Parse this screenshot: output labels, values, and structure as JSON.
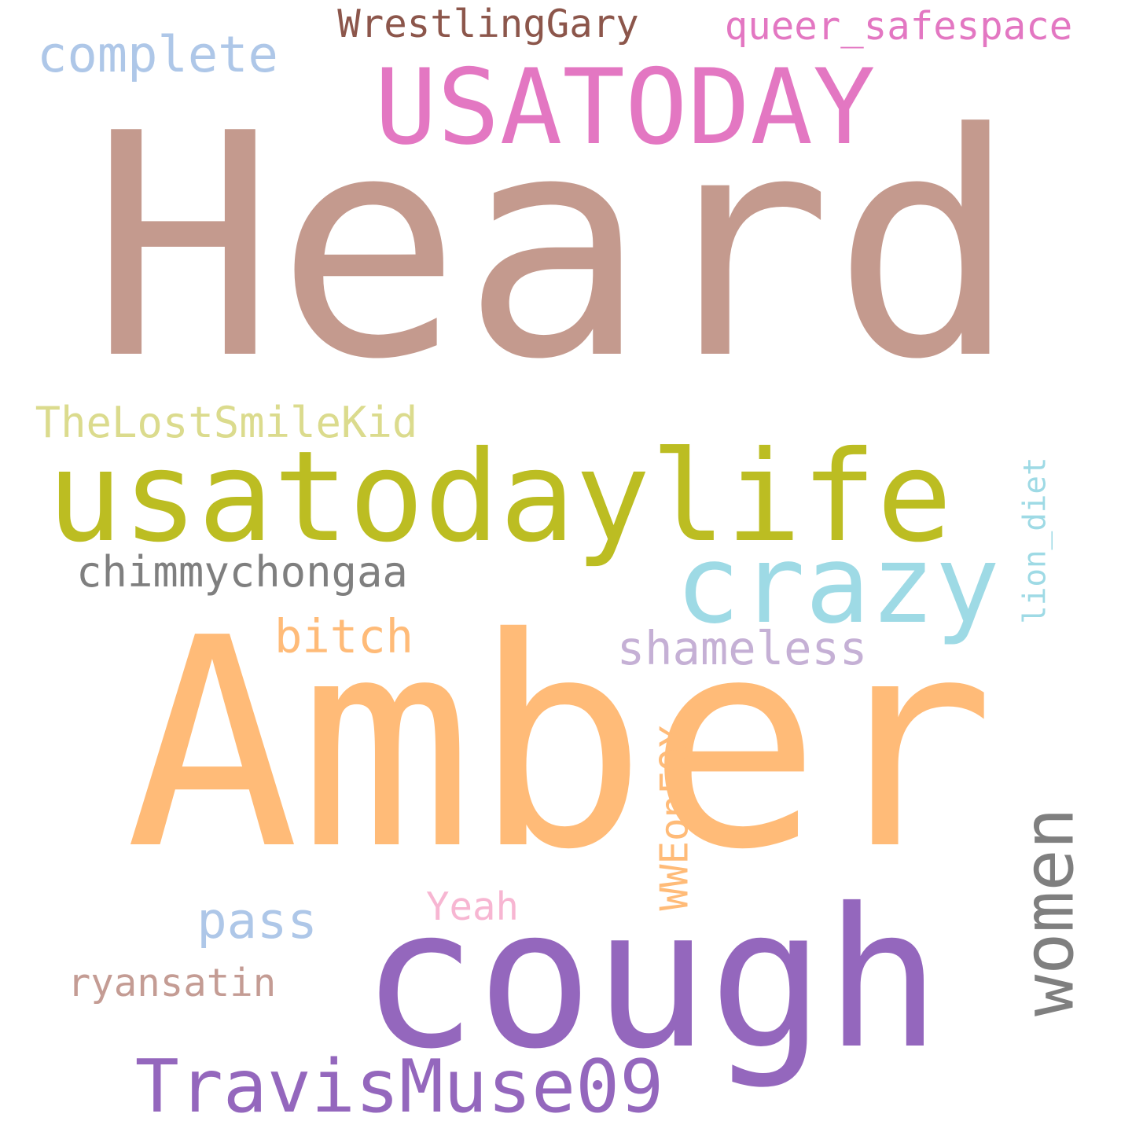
{
  "words": [
    {
      "text": "Heard",
      "color": "#c49a8e"
    },
    {
      "text": "Amber",
      "color": "#ffbb78"
    },
    {
      "text": "cough",
      "color": "#9467bd"
    },
    {
      "text": "USATODAY",
      "color": "#e377c2"
    },
    {
      "text": "usatodaylife",
      "color": "#bcbd22"
    },
    {
      "text": "women",
      "color": "#7f7f7f"
    },
    {
      "text": "crazy",
      "color": "#9edae5"
    },
    {
      "text": "TravisMuse09",
      "color": "#9467bd"
    },
    {
      "text": "chimmychongaa",
      "color": "#7f7f7f"
    },
    {
      "text": "WrestlingGary",
      "color": "#8c564b"
    },
    {
      "text": "queer_safespace",
      "color": "#e377c2"
    },
    {
      "text": "complete",
      "color": "#aec7e8"
    },
    {
      "text": "TheLostSmileKid",
      "color": "#dbdb8d"
    },
    {
      "text": "shameless",
      "color": "#c5b0d5"
    },
    {
      "text": "bitch",
      "color": "#ffbb78"
    },
    {
      "text": "lion_diet",
      "color": "#9edae5"
    },
    {
      "text": "pass",
      "color": "#aec7e8"
    },
    {
      "text": "ryansatin",
      "color": "#c49c94"
    },
    {
      "text": "Yeah",
      "color": "#f7b6d2"
    },
    {
      "text": "WWEonFOX",
      "color": "#ffbb78"
    }
  ]
}
